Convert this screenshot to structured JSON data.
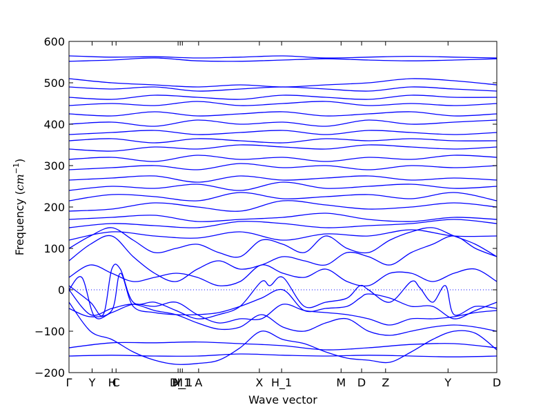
{
  "chart_data": {
    "type": "line",
    "title": "",
    "xlabel": "Wave vector",
    "ylabel": "Frequency (cm⁻¹)",
    "ylabel_main": "Frequency (",
    "ylabel_unit": "cm",
    "ylabel_exp": "−1",
    "ylabel_close": ")",
    "ylim": [
      -200,
      600
    ],
    "yticks": [
      -200,
      -100,
      0,
      100,
      200,
      300,
      400,
      500,
      600
    ],
    "xlim": [
      0,
      1
    ],
    "x_ticks": [
      {
        "label": "Γ",
        "x": 0.0
      },
      {
        "label": "Y",
        "x": 0.054
      },
      {
        "label": "H",
        "x": 0.101
      },
      {
        "label": "C",
        "x": 0.11
      },
      {
        "label": "M",
        "x": 0.255
      },
      {
        "label": "D_1",
        "x": 0.26
      },
      {
        "label": "H_1",
        "x": 0.265
      },
      {
        "label": "A",
        "x": 0.303
      },
      {
        "label": "X",
        "x": 0.445
      },
      {
        "label": "H_1",
        "x": 0.497
      },
      {
        "label": "M",
        "x": 0.636
      },
      {
        "label": "D",
        "x": 0.684
      },
      {
        "label": "Z",
        "x": 0.74
      },
      {
        "label": "Y",
        "x": 0.886
      },
      {
        "label": "D",
        "x": 1.0
      }
    ],
    "zero_line": {
      "y": 0,
      "style": "dotted"
    },
    "line_color": "#0000ff",
    "grid": false,
    "series": [
      {
        "x": [
          0,
          0.1,
          0.2,
          0.3,
          0.4,
          0.5,
          0.6,
          0.7,
          0.8,
          0.9,
          1
        ],
        "y": [
          -160,
          -158,
          -160,
          -160,
          -155,
          -158,
          -160,
          -158,
          -160,
          -162,
          -160
        ]
      },
      {
        "x": [
          0,
          0.1,
          0.2,
          0.3,
          0.4,
          0.5,
          0.6,
          0.7,
          0.8,
          0.9,
          1
        ],
        "y": [
          -140,
          -128,
          -128,
          -126,
          -130,
          -135,
          -145,
          -140,
          -132,
          -130,
          -140
        ]
      },
      {
        "x": [
          0,
          0.05,
          0.1,
          0.15,
          0.2,
          0.25,
          0.3,
          0.35,
          0.4,
          0.45,
          0.5,
          0.55,
          0.6,
          0.65,
          0.7,
          0.75,
          0.8,
          0.85,
          0.9,
          0.95,
          1
        ],
        "y": [
          -30,
          -100,
          -120,
          -150,
          -170,
          -180,
          -178,
          -170,
          -140,
          -100,
          -120,
          -130,
          -150,
          -165,
          -170,
          -175,
          -150,
          -120,
          -100,
          -105,
          -145
        ]
      },
      {
        "x": [
          0,
          0.05,
          0.1,
          0.15,
          0.2,
          0.25,
          0.3,
          0.35,
          0.4,
          0.45,
          0.5,
          0.55,
          0.6,
          0.65,
          0.7,
          0.75,
          0.8,
          0.85,
          0.9,
          0.95,
          1
        ],
        "y": [
          0,
          -60,
          -45,
          -35,
          -50,
          -60,
          -80,
          -95,
          -90,
          -60,
          -90,
          -100,
          -80,
          -70,
          -100,
          -110,
          -100,
          -90,
          -85,
          -90,
          -100
        ]
      },
      {
        "x": [
          0,
          0.03,
          0.06,
          0.1,
          0.15,
          0.2,
          0.25,
          0.3,
          0.35,
          0.4,
          0.45,
          0.5,
          0.55,
          0.6,
          0.65,
          0.7,
          0.75,
          0.8,
          0.85,
          0.9,
          0.95,
          1
        ],
        "y": [
          0,
          30,
          -65,
          -55,
          -35,
          -40,
          -30,
          -60,
          -80,
          -70,
          -70,
          -35,
          -50,
          -55,
          -60,
          -70,
          -85,
          -70,
          -70,
          -65,
          -55,
          -50
        ]
      },
      {
        "x": [
          0,
          0.05,
          0.1,
          0.12,
          0.15,
          0.2,
          0.25,
          0.3,
          0.35,
          0.4,
          0.45,
          0.5,
          0.55,
          0.6,
          0.65,
          0.68,
          0.7,
          0.75,
          0.8,
          0.85,
          0.9,
          0.95,
          1
        ],
        "y": [
          -45,
          -65,
          -50,
          40,
          -40,
          -55,
          -60,
          -60,
          -55,
          -40,
          -20,
          0,
          -50,
          -45,
          -40,
          -20,
          -10,
          -20,
          -40,
          -40,
          -70,
          -50,
          -30
        ]
      },
      {
        "x": [
          0,
          0.05,
          0.08,
          0.1,
          0.12,
          0.15,
          0.2,
          0.25,
          0.3,
          0.35,
          0.4,
          0.45,
          0.47,
          0.5,
          0.55,
          0.6,
          0.65,
          0.68,
          0.7,
          0.75,
          0.8,
          0.82,
          0.85,
          0.88,
          0.9,
          0.95,
          1
        ],
        "y": [
          10,
          -30,
          -60,
          50,
          50,
          -30,
          -30,
          -50,
          -70,
          -60,
          -40,
          20,
          10,
          30,
          -40,
          -30,
          -20,
          10,
          0,
          -30,
          20,
          5,
          -30,
          10,
          -60,
          -40,
          -45
        ]
      },
      {
        "x": [
          0,
          0.05,
          0.1,
          0.15,
          0.2,
          0.25,
          0.3,
          0.35,
          0.4,
          0.45,
          0.5,
          0.55,
          0.6,
          0.65,
          0.7,
          0.75,
          0.8,
          0.85,
          0.9,
          0.95,
          1
        ],
        "y": [
          30,
          60,
          40,
          20,
          30,
          40,
          30,
          10,
          20,
          60,
          40,
          30,
          50,
          20,
          10,
          40,
          40,
          20,
          40,
          50,
          20
        ]
      },
      {
        "x": [
          0,
          0.05,
          0.1,
          0.15,
          0.2,
          0.25,
          0.3,
          0.35,
          0.4,
          0.45,
          0.5,
          0.55,
          0.6,
          0.65,
          0.7,
          0.75,
          0.8,
          0.85,
          0.9,
          0.95,
          1
        ],
        "y": [
          70,
          110,
          130,
          80,
          40,
          20,
          50,
          70,
          50,
          60,
          80,
          70,
          60,
          90,
          80,
          60,
          90,
          110,
          130,
          100,
          80
        ]
      },
      {
        "x": [
          0,
          0.05,
          0.1,
          0.15,
          0.2,
          0.25,
          0.3,
          0.35,
          0.4,
          0.45,
          0.5,
          0.55,
          0.6,
          0.65,
          0.7,
          0.75,
          0.8,
          0.85,
          0.9,
          0.95,
          1
        ],
        "y": [
          100,
          130,
          150,
          120,
          90,
          100,
          110,
          90,
          80,
          120,
          110,
          90,
          130,
          100,
          90,
          120,
          140,
          150,
          130,
          110,
          80
        ]
      },
      {
        "x": [
          0,
          0.1,
          0.2,
          0.3,
          0.4,
          0.5,
          0.6,
          0.7,
          0.8,
          0.9,
          1
        ],
        "y": [
          120,
          140,
          130,
          125,
          140,
          120,
          135,
          130,
          145,
          130,
          130
        ]
      },
      {
        "x": [
          0,
          0.1,
          0.2,
          0.3,
          0.4,
          0.5,
          0.6,
          0.7,
          0.8,
          0.9,
          1
        ],
        "y": [
          150,
          160,
          155,
          150,
          165,
          160,
          150,
          155,
          160,
          170,
          160
        ]
      },
      {
        "x": [
          0,
          0.1,
          0.2,
          0.3,
          0.4,
          0.5,
          0.6,
          0.7,
          0.8,
          0.9,
          1
        ],
        "y": [
          170,
          175,
          180,
          165,
          170,
          175,
          185,
          170,
          165,
          175,
          170
        ]
      },
      {
        "x": [
          0,
          0.1,
          0.2,
          0.3,
          0.4,
          0.5,
          0.6,
          0.7,
          0.8,
          0.9,
          1
        ],
        "y": [
          190,
          195,
          210,
          200,
          190,
          215,
          205,
          195,
          200,
          210,
          200
        ]
      },
      {
        "x": [
          0,
          0.1,
          0.2,
          0.3,
          0.4,
          0.5,
          0.6,
          0.7,
          0.8,
          0.9,
          1
        ],
        "y": [
          215,
          230,
          225,
          215,
          235,
          220,
          225,
          230,
          220,
          235,
          215
        ]
      },
      {
        "x": [
          0,
          0.1,
          0.2,
          0.3,
          0.4,
          0.5,
          0.6,
          0.7,
          0.8,
          0.9,
          1
        ],
        "y": [
          240,
          250,
          245,
          255,
          240,
          260,
          245,
          250,
          255,
          245,
          250
        ]
      },
      {
        "x": [
          0,
          0.1,
          0.2,
          0.3,
          0.4,
          0.5,
          0.6,
          0.7,
          0.8,
          0.9,
          1
        ],
        "y": [
          265,
          270,
          275,
          260,
          275,
          265,
          270,
          275,
          265,
          270,
          265
        ]
      },
      {
        "x": [
          0,
          0.1,
          0.2,
          0.3,
          0.4,
          0.5,
          0.6,
          0.7,
          0.8,
          0.9,
          1
        ],
        "y": [
          290,
          295,
          300,
          290,
          305,
          295,
          300,
          290,
          300,
          295,
          300
        ]
      },
      {
        "x": [
          0,
          0.1,
          0.2,
          0.3,
          0.4,
          0.5,
          0.6,
          0.7,
          0.8,
          0.9,
          1
        ],
        "y": [
          315,
          320,
          310,
          325,
          315,
          320,
          310,
          320,
          315,
          325,
          320
        ]
      },
      {
        "x": [
          0,
          0.1,
          0.2,
          0.3,
          0.4,
          0.5,
          0.6,
          0.7,
          0.8,
          0.9,
          1
        ],
        "y": [
          340,
          335,
          345,
          340,
          350,
          345,
          340,
          350,
          345,
          340,
          345
        ]
      },
      {
        "x": [
          0,
          0.1,
          0.2,
          0.3,
          0.4,
          0.5,
          0.6,
          0.7,
          0.8,
          0.9,
          1
        ],
        "y": [
          360,
          365,
          355,
          365,
          360,
          355,
          365,
          360,
          365,
          360,
          360
        ]
      },
      {
        "x": [
          0,
          0.1,
          0.2,
          0.3,
          0.4,
          0.5,
          0.6,
          0.7,
          0.8,
          0.9,
          1
        ],
        "y": [
          375,
          380,
          385,
          375,
          380,
          385,
          375,
          385,
          380,
          375,
          380
        ]
      },
      {
        "x": [
          0,
          0.1,
          0.2,
          0.3,
          0.4,
          0.5,
          0.6,
          0.7,
          0.8,
          0.9,
          1
        ],
        "y": [
          400,
          405,
          395,
          410,
          400,
          405,
          395,
          410,
          400,
          405,
          410
        ]
      },
      {
        "x": [
          0,
          0.1,
          0.2,
          0.3,
          0.4,
          0.5,
          0.6,
          0.7,
          0.8,
          0.9,
          1
        ],
        "y": [
          425,
          420,
          430,
          420,
          425,
          430,
          420,
          425,
          430,
          420,
          425
        ]
      },
      {
        "x": [
          0,
          0.1,
          0.2,
          0.3,
          0.4,
          0.5,
          0.6,
          0.7,
          0.8,
          0.9,
          1
        ],
        "y": [
          445,
          450,
          445,
          455,
          445,
          450,
          455,
          445,
          450,
          445,
          450
        ]
      },
      {
        "x": [
          0,
          0.1,
          0.2,
          0.3,
          0.4,
          0.5,
          0.6,
          0.7,
          0.8,
          0.9,
          1
        ],
        "y": [
          465,
          460,
          470,
          465,
          460,
          470,
          465,
          460,
          470,
          465,
          465
        ]
      },
      {
        "x": [
          0,
          0.1,
          0.2,
          0.3,
          0.4,
          0.5,
          0.6,
          0.7,
          0.8,
          0.9,
          1
        ],
        "y": [
          490,
          485,
          490,
          480,
          485,
          490,
          485,
          480,
          490,
          485,
          480
        ]
      },
      {
        "x": [
          0,
          0.1,
          0.2,
          0.3,
          0.4,
          0.5,
          0.6,
          0.7,
          0.8,
          0.9,
          1
        ],
        "y": [
          510,
          500,
          495,
          490,
          495,
          490,
          495,
          500,
          510,
          505,
          495
        ]
      },
      {
        "x": [
          0,
          0.1,
          0.2,
          0.3,
          0.4,
          0.5,
          0.6,
          0.7,
          0.8,
          0.9,
          1
        ],
        "y": [
          552,
          555,
          560,
          553,
          552,
          555,
          558,
          555,
          553,
          555,
          558
        ]
      },
      {
        "x": [
          0,
          0.1,
          0.2,
          0.3,
          0.4,
          0.5,
          0.6,
          0.7,
          0.8,
          0.9,
          1
        ],
        "y": [
          565,
          562,
          563,
          560,
          562,
          565,
          560,
          562,
          564,
          562,
          560
        ]
      }
    ]
  }
}
